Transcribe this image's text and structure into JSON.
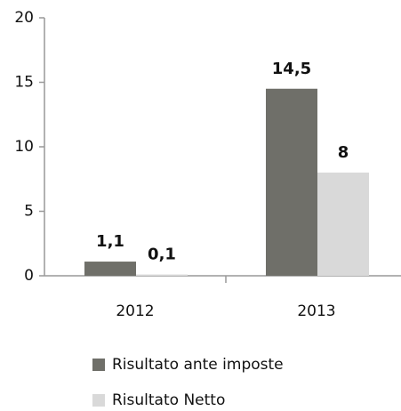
{
  "chart_data": {
    "type": "bar",
    "categories": [
      "2012",
      "2013"
    ],
    "series": [
      {
        "name": "Risultato ante imposte",
        "color": "#6f6f69",
        "values": [
          1.1,
          14.5
        ],
        "value_labels": [
          "1,1",
          "14,5"
        ]
      },
      {
        "name": "Risultato Netto",
        "color": "#d9d9d9",
        "values": [
          0.1,
          8
        ],
        "value_labels": [
          "0,1",
          "8"
        ]
      }
    ],
    "ylim": [
      0,
      20
    ],
    "yticks": [
      0,
      5,
      10,
      15,
      20
    ],
    "grid": false,
    "legend": "bottom"
  }
}
